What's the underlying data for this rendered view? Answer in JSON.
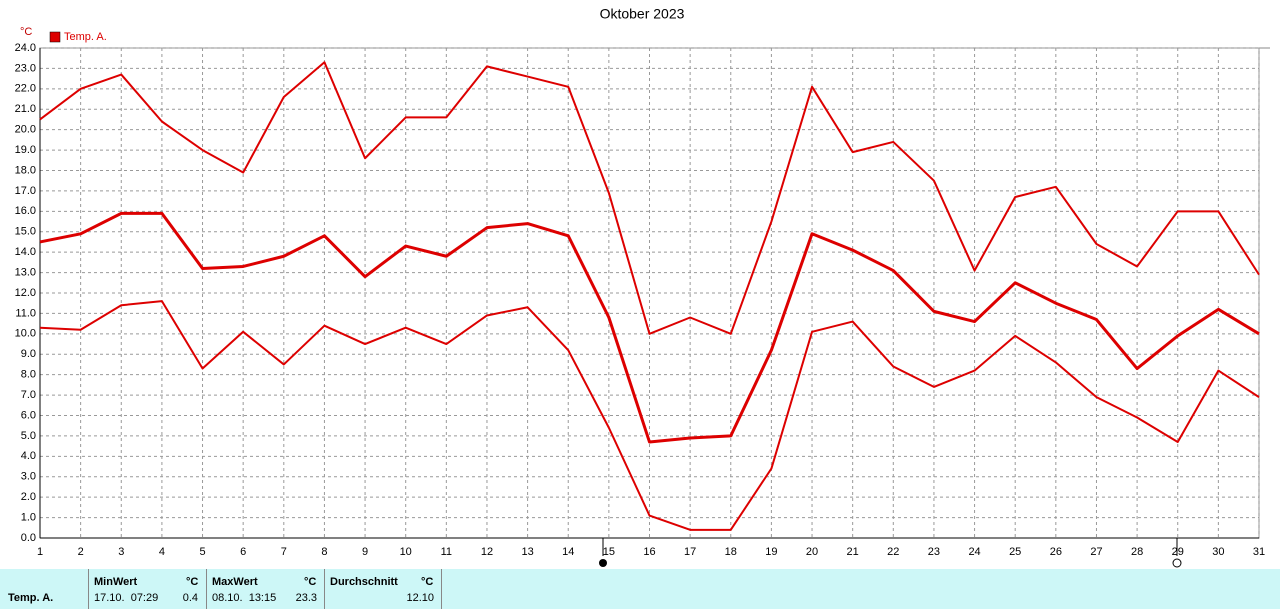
{
  "chart_data": {
    "type": "line",
    "title": "Oktober 2023",
    "y_unit": "°C",
    "x": [
      1,
      2,
      3,
      4,
      5,
      6,
      7,
      8,
      9,
      10,
      11,
      12,
      13,
      14,
      15,
      16,
      17,
      18,
      19,
      20,
      21,
      22,
      23,
      24,
      25,
      26,
      27,
      28,
      29,
      30,
      31
    ],
    "xlim": [
      1,
      31
    ],
    "xticks": [
      1,
      2,
      3,
      4,
      5,
      6,
      7,
      8,
      9,
      10,
      11,
      12,
      13,
      14,
      15,
      16,
      17,
      18,
      19,
      20,
      21,
      22,
      23,
      24,
      25,
      26,
      27,
      28,
      29,
      30,
      31
    ],
    "ylim": [
      0,
      24
    ],
    "yticks": [
      {
        "value": 0,
        "label": "0.0"
      },
      {
        "value": 1,
        "label": "1.0"
      },
      {
        "value": 2,
        "label": "2.0"
      },
      {
        "value": 3,
        "label": "3.0"
      },
      {
        "value": 4,
        "label": "4.0"
      },
      {
        "value": 5,
        "label": "5.0"
      },
      {
        "value": 6,
        "label": "6.0"
      },
      {
        "value": 7,
        "label": "7.0"
      },
      {
        "value": 8,
        "label": "8.0"
      },
      {
        "value": 9,
        "label": "9.0"
      },
      {
        "value": 10,
        "label": "10.0"
      },
      {
        "value": 11,
        "label": "11.0"
      },
      {
        "value": 12,
        "label": "12.0"
      },
      {
        "value": 13,
        "label": "13.0"
      },
      {
        "value": 14,
        "label": "14.0"
      },
      {
        "value": 15,
        "label": "15.0"
      },
      {
        "value": 16,
        "label": "16.0"
      },
      {
        "value": 17,
        "label": "17.0"
      },
      {
        "value": 18,
        "label": "18.0"
      },
      {
        "value": 19,
        "label": "19.0"
      },
      {
        "value": 20,
        "label": "20.0"
      },
      {
        "value": 21,
        "label": "21.0"
      },
      {
        "value": 22,
        "label": "22.0"
      },
      {
        "value": 23,
        "label": "23.0"
      },
      {
        "value": 24,
        "label": "24.0"
      }
    ],
    "grid": true,
    "legend": "top-left",
    "series": [
      {
        "name": "Temp. A.",
        "color": "#dd0000",
        "line_width": 3,
        "values": [
          14.5,
          14.9,
          15.9,
          15.9,
          13.2,
          13.3,
          13.8,
          14.8,
          12.8,
          14.3,
          13.8,
          15.2,
          15.4,
          14.8,
          10.8,
          4.7,
          4.9,
          5.0,
          9.2,
          14.9,
          14.1,
          13.1,
          11.1,
          10.6,
          12.5,
          11.5,
          10.7,
          8.3,
          9.9,
          11.2,
          10.0
        ]
      },
      {
        "color": "#dd0000",
        "line_width": 2,
        "values": [
          20.5,
          22.0,
          22.7,
          20.4,
          19.0,
          17.9,
          21.6,
          23.3,
          18.6,
          20.6,
          20.6,
          23.1,
          22.6,
          22.1,
          16.9,
          10.0,
          10.8,
          10.0,
          15.5,
          22.1,
          18.9,
          19.4,
          17.5,
          13.1,
          16.7,
          17.2,
          14.4,
          13.3,
          16.0,
          16.0,
          12.9
        ]
      },
      {
        "color": "#dd0000",
        "line_width": 2,
        "values": [
          10.3,
          10.2,
          11.4,
          11.6,
          8.3,
          10.1,
          8.5,
          10.4,
          9.5,
          10.3,
          9.5,
          10.9,
          11.3,
          9.2,
          5.4,
          1.1,
          0.4,
          0.4,
          3.4,
          10.1,
          10.6,
          8.4,
          7.4,
          8.2,
          9.9,
          8.6,
          6.9,
          5.9,
          4.7,
          8.2,
          6.9
        ]
      }
    ]
  },
  "summary": {
    "row_label": "Temp. A.",
    "columns": [
      {
        "header": "MinWert",
        "unit": "°C",
        "time": "17.10.  07:29",
        "value": "0.4"
      },
      {
        "header": "MaxWert",
        "unit": "°C",
        "time": "08.10.  13:15",
        "value": "23.3"
      },
      {
        "header": "Durchschnitt",
        "unit": "°C",
        "value": "12.10"
      }
    ]
  }
}
